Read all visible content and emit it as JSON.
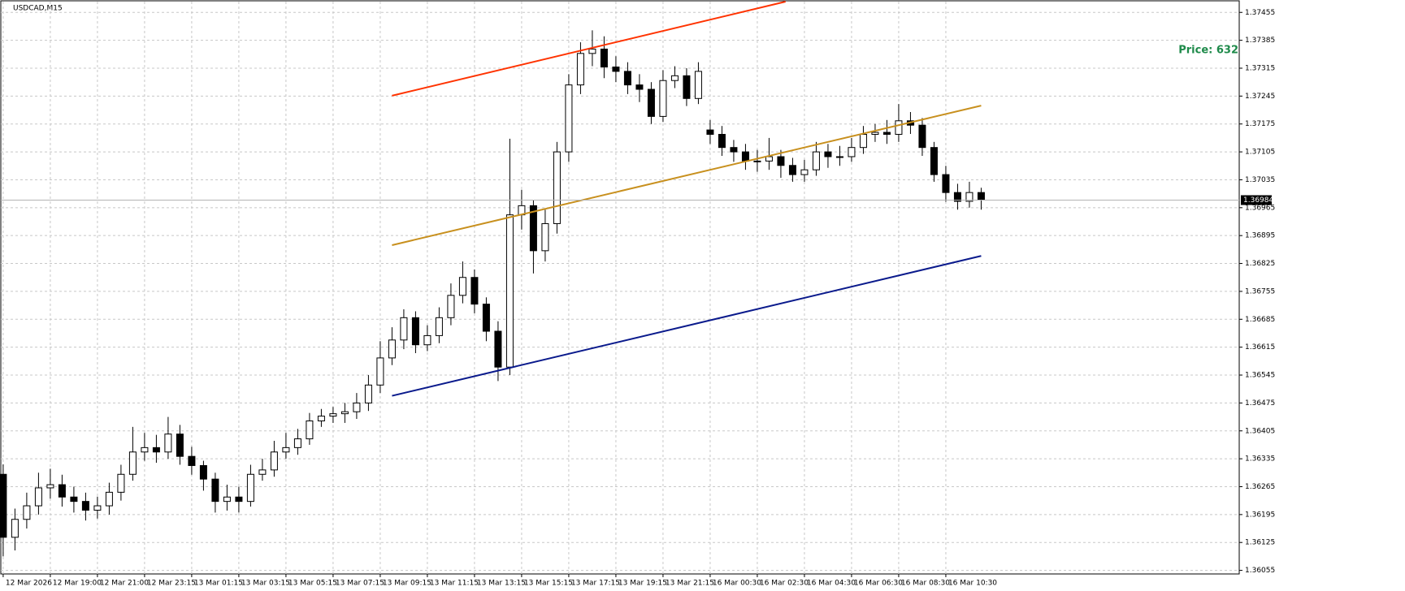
{
  "chart_data": {
    "type": "candlestick",
    "title": "USDCAD,M15",
    "annotation": "Price: 632",
    "ylim": [
      1.36046,
      1.37482
    ],
    "yticks": [
      1.37455,
      1.37385,
      1.37315,
      1.37245,
      1.37175,
      1.37105,
      1.37035,
      1.36965,
      1.36895,
      1.36825,
      1.36755,
      1.36685,
      1.36615,
      1.36545,
      1.36475,
      1.36405,
      1.36335,
      1.36265,
      1.36195,
      1.36125,
      1.36055
    ],
    "xlim": [
      -0.2,
      104.9
    ],
    "xticks": [
      {
        "value": 0,
        "label": "12 Mar 2026"
      },
      {
        "value": 4,
        "label": "12 Mar 19:00"
      },
      {
        "value": 8,
        "label": "12 Mar 21:00"
      },
      {
        "value": 12,
        "label": "12 Mar 23:15"
      },
      {
        "value": 16,
        "label": "13 Mar 01:15"
      },
      {
        "value": 20,
        "label": "13 Mar 03:15"
      },
      {
        "value": 24,
        "label": "13 Mar 05:15"
      },
      {
        "value": 28,
        "label": "13 Mar 07:15"
      },
      {
        "value": 32,
        "label": "13 Mar 09:15"
      },
      {
        "value": 36,
        "label": "13 Mar 11:15"
      },
      {
        "value": 40,
        "label": "13 Mar 13:15"
      },
      {
        "value": 44,
        "label": "13 Mar 15:15"
      },
      {
        "value": 48,
        "label": "13 Mar 17:15"
      },
      {
        "value": 52,
        "label": "13 Mar 19:15"
      },
      {
        "value": 56,
        "label": "13 Mar 21:15"
      },
      {
        "value": 60,
        "label": "16 Mar 00:30"
      },
      {
        "value": 64,
        "label": "16 Mar 02:30"
      },
      {
        "value": 68,
        "label": "16 Mar 04:30"
      },
      {
        "value": 72,
        "label": "16 Mar 06:30"
      },
      {
        "value": 76,
        "label": "16 Mar 08:30"
      },
      {
        "value": 80,
        "label": "16 Mar 10:30"
      }
    ],
    "grid": true,
    "open": [
      1.36296,
      1.36138,
      1.36183,
      1.36217,
      1.36262,
      1.3627,
      1.36239,
      1.36228,
      1.36206,
      1.36217,
      1.36251,
      1.36296,
      1.36352,
      1.36363,
      1.36352,
      1.36397,
      1.36341,
      1.36318,
      1.36284,
      1.36228,
      1.36239,
      1.36228,
      1.36296,
      1.36307,
      1.36352,
      1.36363,
      1.36385,
      1.3643,
      1.36442,
      1.36448,
      1.36453,
      1.36475,
      1.3652,
      1.36588,
      1.36633,
      1.36689,
      1.36621,
      1.36644,
      1.36689,
      1.36745,
      1.3679,
      1.36723,
      1.36655,
      1.36565,
      1.36947,
      1.3697,
      1.36857,
      1.36925,
      1.37105,
      1.37273,
      1.37352,
      1.37363,
      1.37318,
      1.37307,
      1.37273,
      1.37262,
      1.37194,
      1.37284,
      1.37296,
      1.37239,
      1.3716,
      1.37149,
      1.37116,
      1.37105,
      1.37082,
      1.37082,
      1.37093,
      1.37071,
      1.37048,
      1.3706,
      1.37105,
      1.37093,
      1.37093,
      1.37116,
      1.37149,
      1.37154,
      1.37149,
      1.37183,
      1.37172,
      1.37116,
      1.37048,
      1.37003,
      1.36981,
      1.37003
    ],
    "high": [
      1.36321,
      1.3621,
      1.3625,
      1.363,
      1.3631,
      1.36295,
      1.36265,
      1.3625,
      1.3624,
      1.36275,
      1.3632,
      1.36415,
      1.364,
      1.36395,
      1.3644,
      1.3642,
      1.36365,
      1.3633,
      1.363,
      1.3627,
      1.36265,
      1.3632,
      1.36335,
      1.3638,
      1.364,
      1.3641,
      1.3645,
      1.3646,
      1.36465,
      1.36475,
      1.365,
      1.36545,
      1.3663,
      1.36665,
      1.3671,
      1.36705,
      1.3667,
      1.36715,
      1.36775,
      1.3683,
      1.3681,
      1.3674,
      1.3668,
      1.37138,
      1.3701,
      1.36985,
      1.3696,
      1.3713,
      1.373,
      1.3738,
      1.3741,
      1.37395,
      1.37345,
      1.3733,
      1.373,
      1.3728,
      1.3731,
      1.3732,
      1.37315,
      1.3733,
      1.37185,
      1.3717,
      1.37135,
      1.37125,
      1.3711,
      1.3714,
      1.3711,
      1.3709,
      1.37085,
      1.3713,
      1.37125,
      1.3712,
      1.3714,
      1.3717,
      1.37175,
      1.37185,
      1.37225,
      1.37205,
      1.3719,
      1.3713,
      1.3707,
      1.37025,
      1.3703,
      1.37015
    ],
    "low": [
      1.3609,
      1.36105,
      1.3616,
      1.36195,
      1.36235,
      1.36215,
      1.362,
      1.3618,
      1.36185,
      1.36195,
      1.3623,
      1.3628,
      1.3633,
      1.36325,
      1.36335,
      1.3632,
      1.36295,
      1.36255,
      1.362,
      1.36205,
      1.362,
      1.36215,
      1.3628,
      1.3629,
      1.36335,
      1.36345,
      1.3637,
      1.36415,
      1.36425,
      1.36425,
      1.36435,
      1.36455,
      1.365,
      1.3657,
      1.3661,
      1.366,
      1.36605,
      1.36625,
      1.3667,
      1.36725,
      1.367,
      1.3663,
      1.3653,
      1.36545,
      1.3691,
      1.368,
      1.3683,
      1.369,
      1.3708,
      1.3725,
      1.3732,
      1.3729,
      1.3728,
      1.3725,
      1.3723,
      1.37175,
      1.3718,
      1.37265,
      1.3722,
      1.37225,
      1.37125,
      1.37095,
      1.3708,
      1.3706,
      1.37055,
      1.3706,
      1.3704,
      1.3703,
      1.3703,
      1.37045,
      1.37065,
      1.3707,
      1.3708,
      1.371,
      1.3713,
      1.37125,
      1.3713,
      1.3715,
      1.37095,
      1.3703,
      1.3698,
      1.3696,
      1.36965,
      1.3696
    ],
    "close": [
      1.36138,
      1.36183,
      1.36217,
      1.36262,
      1.3627,
      1.36239,
      1.36228,
      1.36206,
      1.36217,
      1.36251,
      1.36296,
      1.36352,
      1.36363,
      1.36352,
      1.36397,
      1.36341,
      1.36318,
      1.36284,
      1.36228,
      1.36239,
      1.36228,
      1.36296,
      1.36307,
      1.36352,
      1.36363,
      1.36385,
      1.3643,
      1.36442,
      1.36448,
      1.36453,
      1.36475,
      1.3652,
      1.36588,
      1.36633,
      1.36689,
      1.36621,
      1.36644,
      1.36689,
      1.36745,
      1.3679,
      1.36723,
      1.36655,
      1.36565,
      1.36947,
      1.3697,
      1.36857,
      1.36925,
      1.37105,
      1.37273,
      1.37352,
      1.37363,
      1.37318,
      1.37307,
      1.37273,
      1.37262,
      1.37194,
      1.37284,
      1.37296,
      1.37239,
      1.37307,
      1.37149,
      1.37116,
      1.37105,
      1.37082,
      1.37082,
      1.37093,
      1.37071,
      1.37048,
      1.3706,
      1.37105,
      1.37093,
      1.37093,
      1.37116,
      1.37149,
      1.37154,
      1.37149,
      1.37183,
      1.37172,
      1.37116,
      1.37048,
      1.37003,
      1.36981,
      1.37003,
      1.36984
    ],
    "price_line": 1.36984,
    "trendlines": [
      {
        "color": "#ff3300",
        "x": [
          33,
          66.4
        ],
        "values": [
          1.37246,
          1.37482
        ]
      },
      {
        "color": "#c8901e",
        "x": [
          33,
          83
        ],
        "values": [
          1.36871,
          1.37221
        ]
      },
      {
        "color": "#0a1a8c",
        "x": [
          33,
          83
        ],
        "values": [
          1.36493,
          1.36844
        ]
      }
    ]
  }
}
